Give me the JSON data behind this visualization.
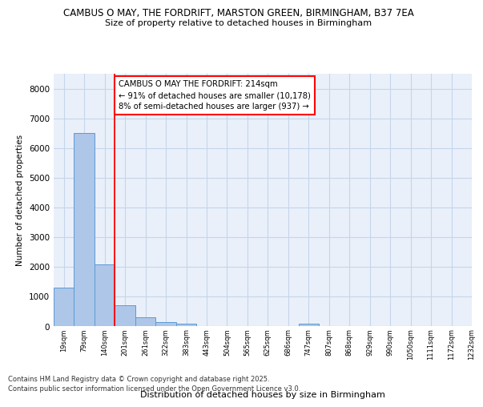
{
  "title": "CAMBUS O MAY, THE FORDRIFT, MARSTON GREEN, BIRMINGHAM, B37 7EA",
  "subtitle": "Size of property relative to detached houses in Birmingham",
  "xlabel": "Distribution of detached houses by size in Birmingham",
  "ylabel": "Number of detached properties",
  "bar_values": [
    1300,
    6500,
    2100,
    700,
    300,
    150,
    80,
    0,
    0,
    0,
    0,
    0,
    80,
    0,
    0,
    0,
    0,
    0,
    0,
    0
  ],
  "bin_labels": [
    "19sqm",
    "79sqm",
    "140sqm",
    "201sqm",
    "261sqm",
    "322sqm",
    "383sqm",
    "443sqm",
    "504sqm",
    "565sqm",
    "625sqm",
    "686sqm",
    "747sqm",
    "807sqm",
    "868sqm",
    "929sqm",
    "990sqm",
    "1050sqm",
    "1111sqm",
    "1172sqm",
    "1232sqm"
  ],
  "bar_color": "#aec6e8",
  "bar_edge_color": "#5b9bd5",
  "red_line_x": 3.0,
  "annotation_text": "CAMBUS O MAY THE FORDRIFT: 214sqm\n← 91% of detached houses are smaller (10,178)\n8% of semi-detached houses are larger (937) →",
  "ylim": [
    0,
    8500
  ],
  "yticks": [
    0,
    1000,
    2000,
    3000,
    4000,
    5000,
    6000,
    7000,
    8000
  ],
  "footer1": "Contains HM Land Registry data © Crown copyright and database right 2025.",
  "footer2": "Contains public sector information licensed under the Open Government Licence v3.0.",
  "bg_color": "#eaf0fa",
  "grid_color": "#c5d5ea"
}
